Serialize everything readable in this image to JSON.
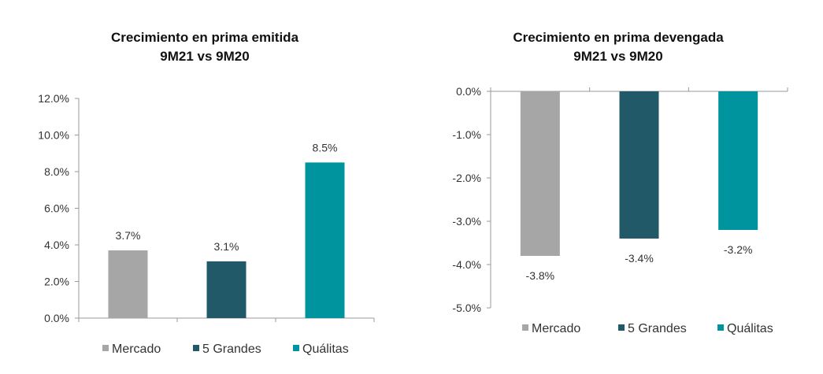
{
  "colors": {
    "mercado": "#a6a6a6",
    "cinco_grandes": "#215968",
    "qualitas": "#00959e",
    "axis": "#9a9a9a",
    "gridline": "#d0d0d0",
    "text": "#333333"
  },
  "chart_data": [
    {
      "type": "bar",
      "title": "Crecimiento en prima emitida",
      "subtitle": "9M21 vs 9M20",
      "categories": [
        "Mercado",
        "5 Grandes",
        "Quálitas"
      ],
      "values": [
        3.7,
        3.1,
        8.5
      ],
      "data_labels": [
        "3.7%",
        "3.1%",
        "8.5%"
      ],
      "ylim": [
        0,
        12
      ],
      "yticks": [
        "12.0%",
        "10.0%",
        "8.0%",
        "6.0%",
        "4.0%",
        "2.0%",
        "0.0%"
      ],
      "ytick_values": [
        12,
        10,
        8,
        6,
        4,
        2,
        0
      ],
      "legend": [
        "Mercado",
        "5 Grandes",
        "Quálitas"
      ],
      "legend_position": "bottom",
      "grid": false
    },
    {
      "type": "bar",
      "title": "Crecimiento en prima devengada",
      "subtitle": "9M21 vs 9M20",
      "categories": [
        "Mercado",
        "5 Grandes",
        "Quálitas"
      ],
      "values": [
        -3.8,
        -3.4,
        -3.2
      ],
      "data_labels": [
        "-3.8%",
        "-3.4%",
        "-3.2%"
      ],
      "ylim": [
        -5,
        0
      ],
      "yticks": [
        "0.0%",
        "-1.0%",
        "-2.0%",
        "-3.0%",
        "-4.0%",
        "-5.0%"
      ],
      "ytick_values": [
        0,
        -1,
        -2,
        -3,
        -4,
        -5
      ],
      "legend": [
        "Mercado",
        "5 Grandes",
        "Quálitas"
      ],
      "legend_position": "bottom",
      "grid": false
    }
  ]
}
